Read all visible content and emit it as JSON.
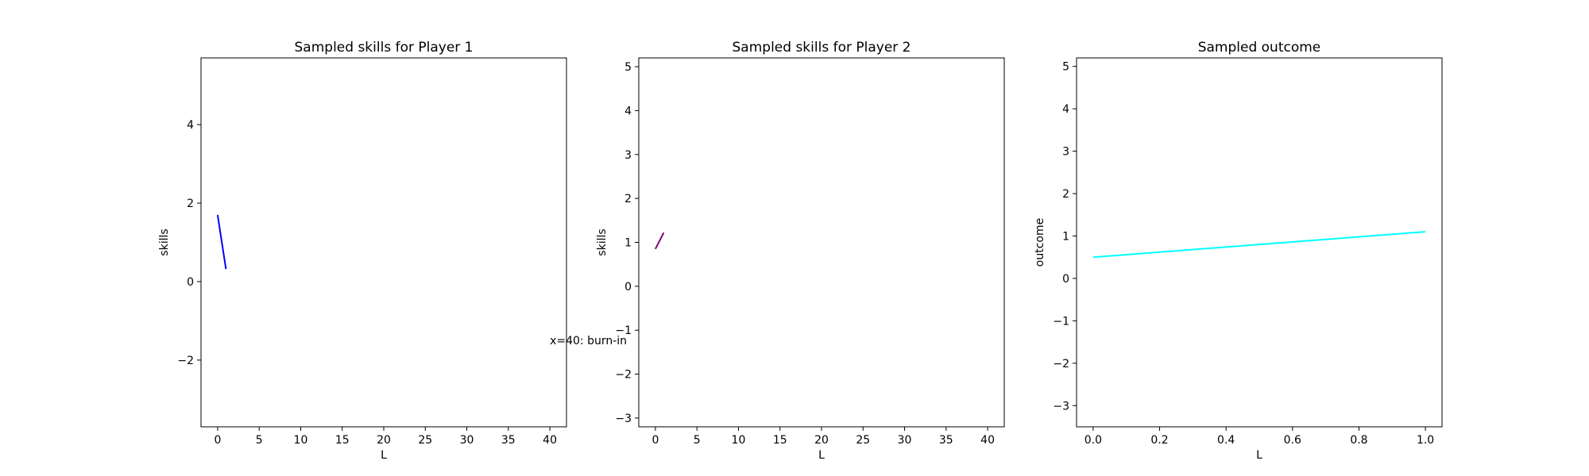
{
  "chart_data": [
    {
      "type": "line",
      "title": "Sampled skills for Player 1",
      "xlabel": "L",
      "ylabel": "skills",
      "xlim": [
        -2,
        42
      ],
      "ylim": [
        -3.7,
        5.7
      ],
      "xticks": [
        0,
        5,
        10,
        15,
        20,
        25,
        30,
        35,
        40
      ],
      "yticks": [
        -2,
        0,
        2,
        4
      ],
      "grid": false,
      "series": [
        {
          "x": [
            0,
            1
          ],
          "y": [
            1.7,
            0.32
          ],
          "color": "#0000ff"
        }
      ],
      "annotations": [
        {
          "text": "x=40: burn-in",
          "x": 40,
          "y": -1.6
        }
      ]
    },
    {
      "type": "line",
      "title": "Sampled skills for Player 2",
      "xlabel": "L",
      "ylabel": "skills",
      "xlim": [
        -2,
        42
      ],
      "ylim": [
        -3.2,
        5.2
      ],
      "xticks": [
        0,
        5,
        10,
        15,
        20,
        25,
        30,
        35,
        40
      ],
      "yticks": [
        -3,
        -2,
        -1,
        0,
        1,
        2,
        3,
        4,
        5
      ],
      "grid": false,
      "series": [
        {
          "x": [
            0,
            1
          ],
          "y": [
            0.85,
            1.22
          ],
          "color": "#800080"
        }
      ],
      "annotations": []
    },
    {
      "type": "line",
      "title": "Sampled outcome",
      "xlabel": "L",
      "ylabel": "outcome",
      "xlim": [
        -0.05,
        1.05
      ],
      "ylim": [
        -3.5,
        5.2
      ],
      "xticks": [
        0.0,
        0.2,
        0.4,
        0.6,
        0.8,
        1.0
      ],
      "xtick_labels": [
        "0.0",
        "0.2",
        "0.4",
        "0.6",
        "0.8",
        "1.0"
      ],
      "yticks": [
        -3,
        -2,
        -1,
        0,
        1,
        2,
        3,
        4,
        5
      ],
      "grid": false,
      "series": [
        {
          "x": [
            0,
            1
          ],
          "y": [
            0.5,
            1.1
          ],
          "color": "#00ffff"
        }
      ],
      "annotations": []
    }
  ]
}
